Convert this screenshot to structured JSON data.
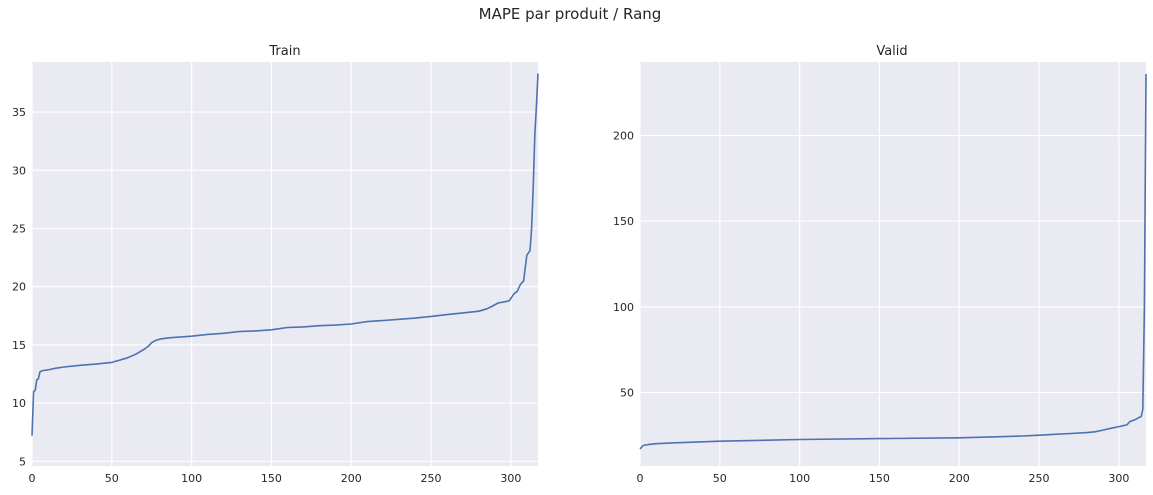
{
  "figure": {
    "suptitle": "MAPE par produit / Rang"
  },
  "chart_data": [
    {
      "type": "line",
      "title": "Train",
      "xlabel": "",
      "ylabel": "",
      "xlim": [
        0,
        317
      ],
      "ylim": [
        4.6,
        39.3
      ],
      "xticks": [
        0,
        50,
        100,
        150,
        200,
        250,
        300
      ],
      "yticks": [
        5,
        10,
        15,
        20,
        25,
        30,
        35
      ],
      "grid": true,
      "series": [
        {
          "color": "#4c72b0",
          "x": [
            0,
            1,
            2,
            3,
            4,
            5,
            7,
            10,
            15,
            20,
            30,
            40,
            50,
            55,
            60,
            65,
            70,
            73,
            75,
            77,
            80,
            85,
            90,
            100,
            110,
            120,
            130,
            140,
            150,
            160,
            170,
            180,
            190,
            200,
            210,
            220,
            230,
            240,
            250,
            260,
            270,
            280,
            285,
            288,
            292,
            296,
            299,
            300,
            302,
            304,
            306,
            308,
            310,
            312,
            313,
            314,
            315,
            316,
            317
          ],
          "y": [
            7.2,
            11.0,
            11.1,
            12.0,
            12.1,
            12.7,
            12.8,
            12.85,
            13.0,
            13.1,
            13.25,
            13.35,
            13.5,
            13.7,
            13.9,
            14.2,
            14.6,
            14.9,
            15.2,
            15.35,
            15.5,
            15.6,
            15.65,
            15.75,
            15.9,
            16.0,
            16.15,
            16.2,
            16.3,
            16.5,
            16.55,
            16.65,
            16.7,
            16.8,
            17.0,
            17.1,
            17.2,
            17.3,
            17.45,
            17.6,
            17.75,
            17.9,
            18.1,
            18.3,
            18.6,
            18.7,
            18.8,
            19.0,
            19.4,
            19.6,
            20.2,
            20.5,
            22.7,
            23.1,
            25.0,
            28.5,
            33.0,
            35.5,
            38.3
          ]
        }
      ]
    },
    {
      "type": "line",
      "title": "Valid",
      "xlabel": "",
      "ylabel": "",
      "xlim": [
        0,
        317
      ],
      "ylim": [
        7,
        243
      ],
      "xticks": [
        0,
        50,
        100,
        150,
        200,
        250,
        300
      ],
      "yticks": [
        50,
        100,
        150,
        200
      ],
      "grid": true,
      "series": [
        {
          "color": "#4c72b0",
          "x": [
            0,
            2,
            5,
            10,
            20,
            50,
            100,
            150,
            200,
            220,
            240,
            250,
            260,
            270,
            280,
            285,
            290,
            295,
            300,
            305,
            307,
            310,
            312,
            314,
            315,
            316,
            317
          ],
          "y": [
            17,
            19,
            19.5,
            20,
            20.5,
            21.5,
            22.5,
            23,
            23.5,
            24,
            24.5,
            25,
            25.5,
            26,
            26.5,
            27,
            28,
            29,
            30,
            31,
            33,
            34,
            35,
            36,
            40,
            100,
            236
          ]
        }
      ]
    }
  ]
}
